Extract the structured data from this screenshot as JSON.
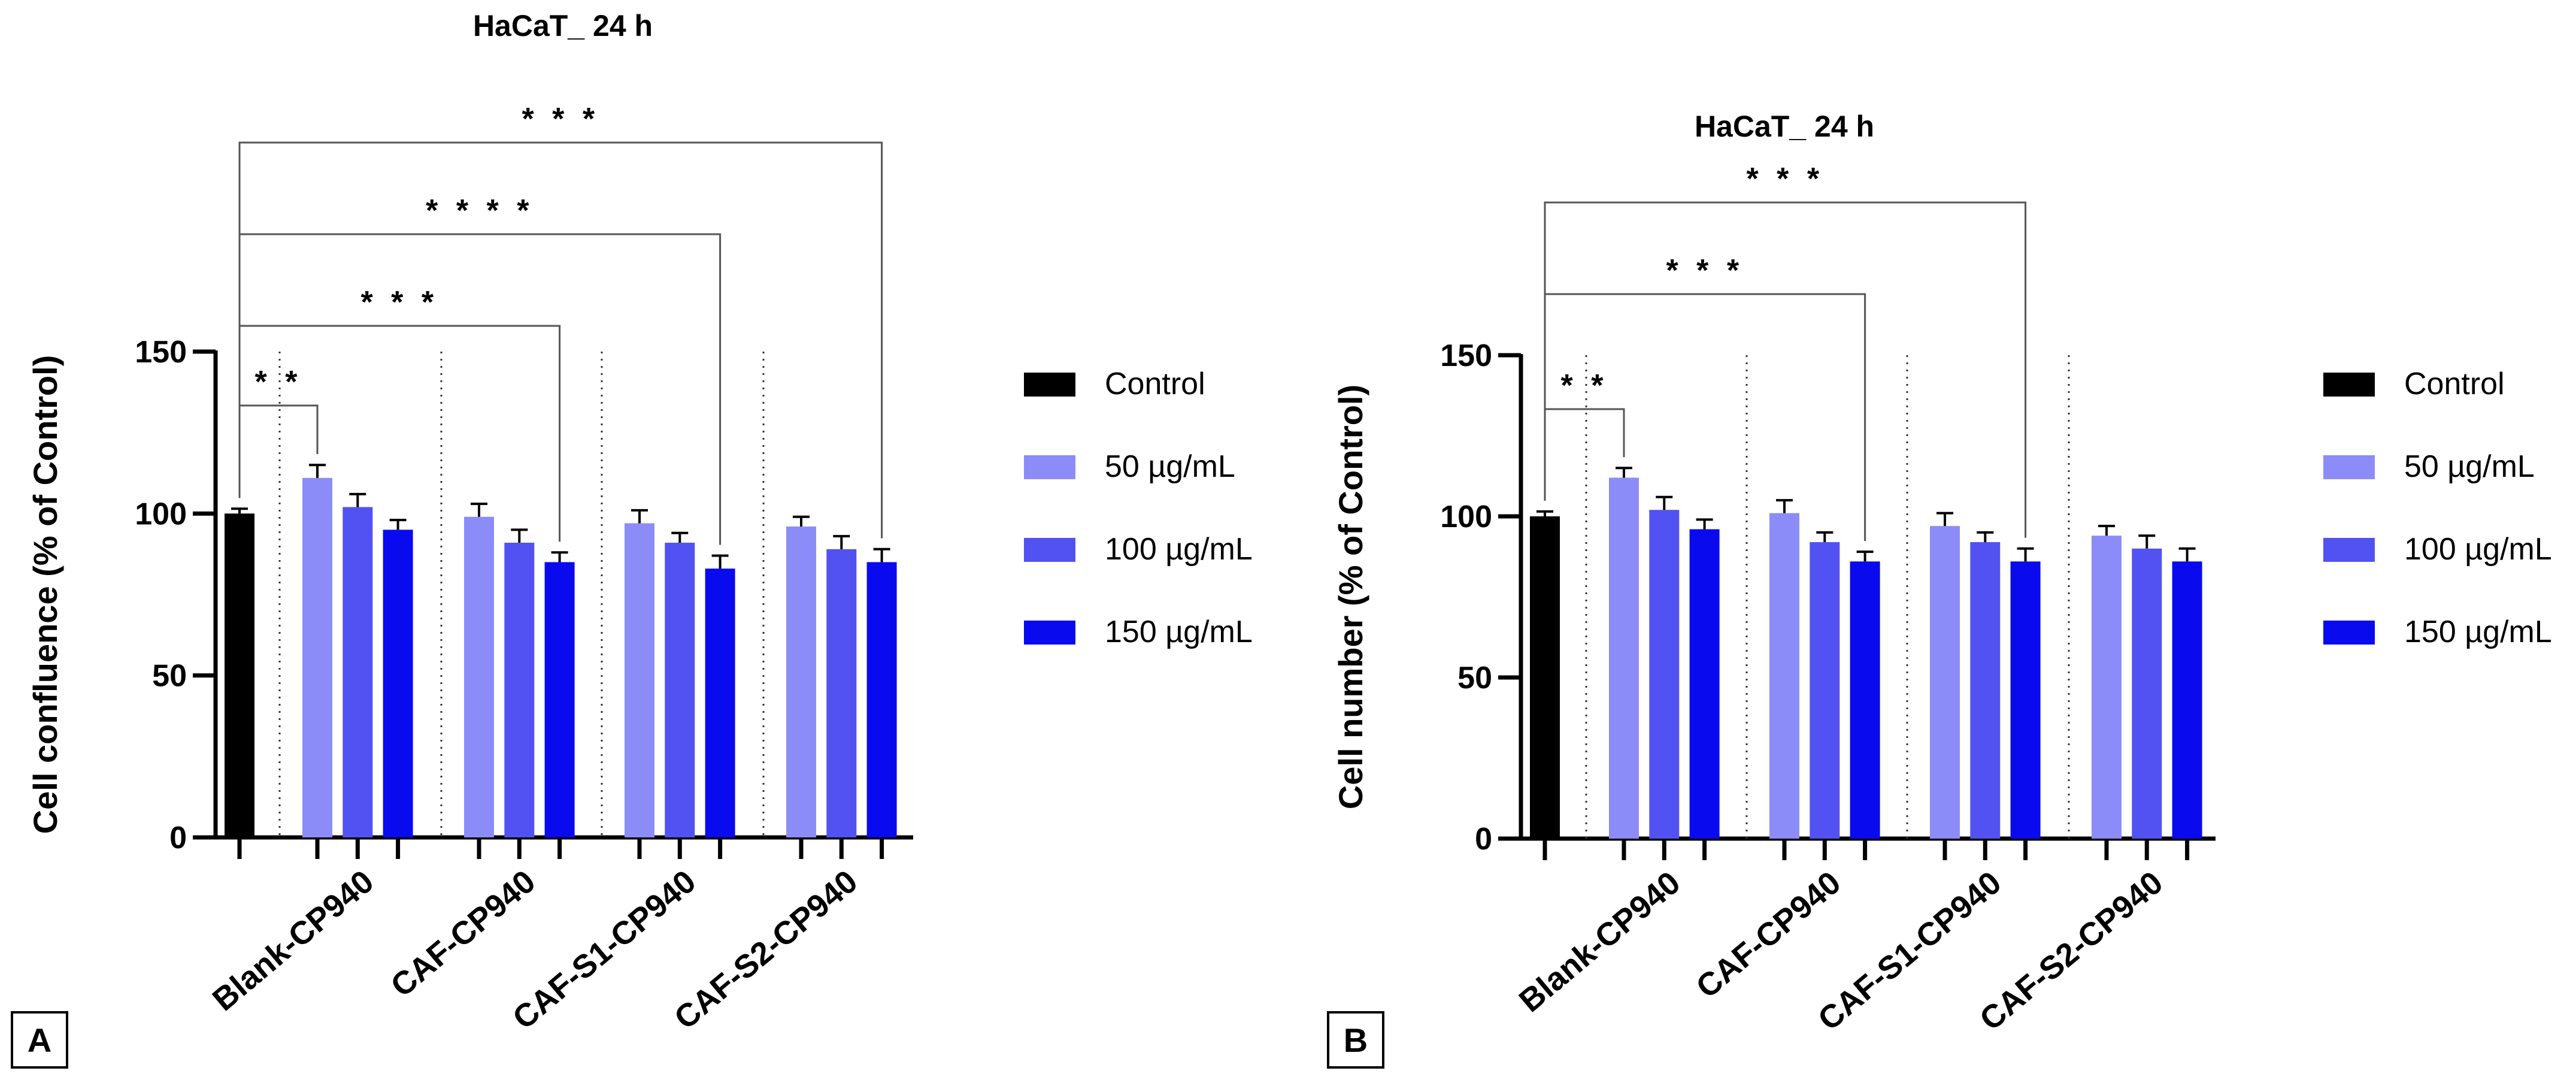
{
  "chart_data": [
    {
      "type": "bar",
      "panel": "A",
      "title": "HaCaT_ 24 h",
      "ylabel": "Cell confluence (% of Control)",
      "xlabel": "",
      "ylim": [
        0,
        150
      ],
      "yticks": [
        0,
        50,
        100,
        150
      ],
      "categories": [
        "Blank-CP940",
        "CAF-CP940",
        "CAF-S1-CP940",
        "CAF-S2-CP940"
      ],
      "control": {
        "name": "Control",
        "value": 100,
        "error": 1.5,
        "color": "#000000"
      },
      "series": [
        {
          "name": "50 µg/mL",
          "color": "#8C8CF8",
          "values": [
            111,
            99,
            97,
            96
          ],
          "errors": [
            4,
            4,
            4,
            3
          ]
        },
        {
          "name": "100 µg/mL",
          "color": "#5252F2",
          "values": [
            102,
            91,
            91,
            89
          ],
          "errors": [
            4,
            4,
            3,
            4
          ]
        },
        {
          "name": "150 µg/mL",
          "color": "#0A0AEE",
          "values": [
            95,
            85,
            83,
            85
          ],
          "errors": [
            3,
            3,
            4,
            4
          ]
        }
      ],
      "significance": [
        {
          "label": "* *",
          "from": "Control",
          "to": "Blank-CP940 50 µg/mL",
          "level": 1
        },
        {
          "label": "* * *",
          "from": "Control",
          "to": "CAF-CP940 150 µg/mL",
          "level": 2
        },
        {
          "label": "* * * *",
          "from": "Control",
          "to": "CAF-S1-CP940 150 µg/mL",
          "level": 3
        },
        {
          "label": "* * *",
          "from": "Control",
          "to": "CAF-S2-CP940 150 µg/mL",
          "level": 4
        }
      ],
      "legend": [
        "Control",
        "50 µg/mL",
        "100 µg/mL",
        "150 µg/mL"
      ],
      "legend_placement": "right"
    },
    {
      "type": "bar",
      "panel": "B",
      "title": "HaCaT_ 24 h",
      "ylabel": "Cell number (% of Control)",
      "xlabel": "",
      "ylim": [
        0,
        150
      ],
      "yticks": [
        0,
        50,
        100,
        150
      ],
      "categories": [
        "Blank-CP940",
        "CAF-CP940",
        "CAF-S1-CP940",
        "CAF-S2-CP940"
      ],
      "control": {
        "name": "Control",
        "value": 100,
        "error": 1.5,
        "color": "#000000"
      },
      "series": [
        {
          "name": "50 µg/mL",
          "color": "#8C8CF8",
          "values": [
            112,
            101,
            97,
            94
          ],
          "errors": [
            3,
            4,
            4,
            3
          ]
        },
        {
          "name": "100 µg/mL",
          "color": "#5252F2",
          "values": [
            102,
            92,
            92,
            90
          ],
          "errors": [
            4,
            3,
            3,
            4
          ]
        },
        {
          "name": "150 µg/mL",
          "color": "#0A0AEE",
          "values": [
            96,
            86,
            86,
            86
          ],
          "errors": [
            3,
            3,
            4,
            4
          ]
        }
      ],
      "significance": [
        {
          "label": "* *",
          "from": "Control",
          "to": "Blank-CP940 50 µg/mL",
          "level": 1
        },
        {
          "label": "* * *",
          "from": "Control",
          "to": "CAF-CP940 150 µg/mL",
          "level": 2
        },
        {
          "label": "* * *",
          "from": "Control",
          "to": "CAF-S1-CP940 150 µg/mL",
          "level": 3
        }
      ],
      "legend": [
        "Control",
        "50 µg/mL",
        "100 µg/mL",
        "150 µg/mL"
      ],
      "legend_placement": "right"
    }
  ]
}
